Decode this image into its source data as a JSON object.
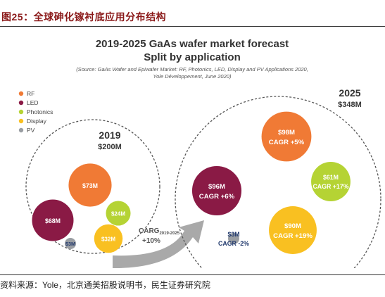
{
  "figure": {
    "caption": "图25：全球砷化镓衬底应用分布结构",
    "source": "资料来源：Yole，北京通美招股说明书，民生证券研究院"
  },
  "chart_data": {
    "type": "bubble",
    "title": "2019-2025 GaAs wafer market forecast",
    "subtitle": "Split by application",
    "note_line1": "(Source: GaAs Wafer and Epiwafer Market: RF, Photonics, LED, Display and PV Applications 2020,",
    "note_line2": "Yole Développement, June 2020)",
    "unit": "$M",
    "legend_position": "top-left",
    "series": [
      {
        "name": "RF",
        "color": "#f07a35"
      },
      {
        "name": "LED",
        "color": "#8a1a45"
      },
      {
        "name": "Photonics",
        "color": "#b5d334"
      },
      {
        "name": "Display",
        "color": "#f9c021"
      },
      {
        "name": "PV",
        "color": "#9a9ea3"
      }
    ],
    "years": [
      {
        "year": "2019",
        "total": "$200M",
        "values": [
          {
            "series": "RF",
            "value": 73,
            "label": "$73M",
            "cagr": ""
          },
          {
            "series": "LED",
            "value": 68,
            "label": "$68M",
            "cagr": ""
          },
          {
            "series": "Photonics",
            "value": 24,
            "label": "$24M",
            "cagr": ""
          },
          {
            "series": "Display",
            "value": 32,
            "label": "$32M",
            "cagr": ""
          },
          {
            "series": "PV",
            "value": 3,
            "label": "$3M",
            "cagr": ""
          }
        ]
      },
      {
        "year": "2025",
        "total": "$348M",
        "values": [
          {
            "series": "RF",
            "value": 98,
            "label": "$98M",
            "cagr": "CAGR +5%"
          },
          {
            "series": "LED",
            "value": 96,
            "label": "$96M",
            "cagr": "CAGR +6%"
          },
          {
            "series": "Photonics",
            "value": 61,
            "label": "$61M",
            "cagr": "CAGR +17%"
          },
          {
            "series": "Display",
            "value": 90,
            "label": "$90M",
            "cagr": "CAGR +19%"
          },
          {
            "series": "PV",
            "value": 3,
            "label": "$3M",
            "cagr": "CAGR -2%"
          }
        ]
      }
    ],
    "arrow_label": "CARG",
    "arrow_label_sub": "2019-2025",
    "arrow_value": "+10%"
  }
}
